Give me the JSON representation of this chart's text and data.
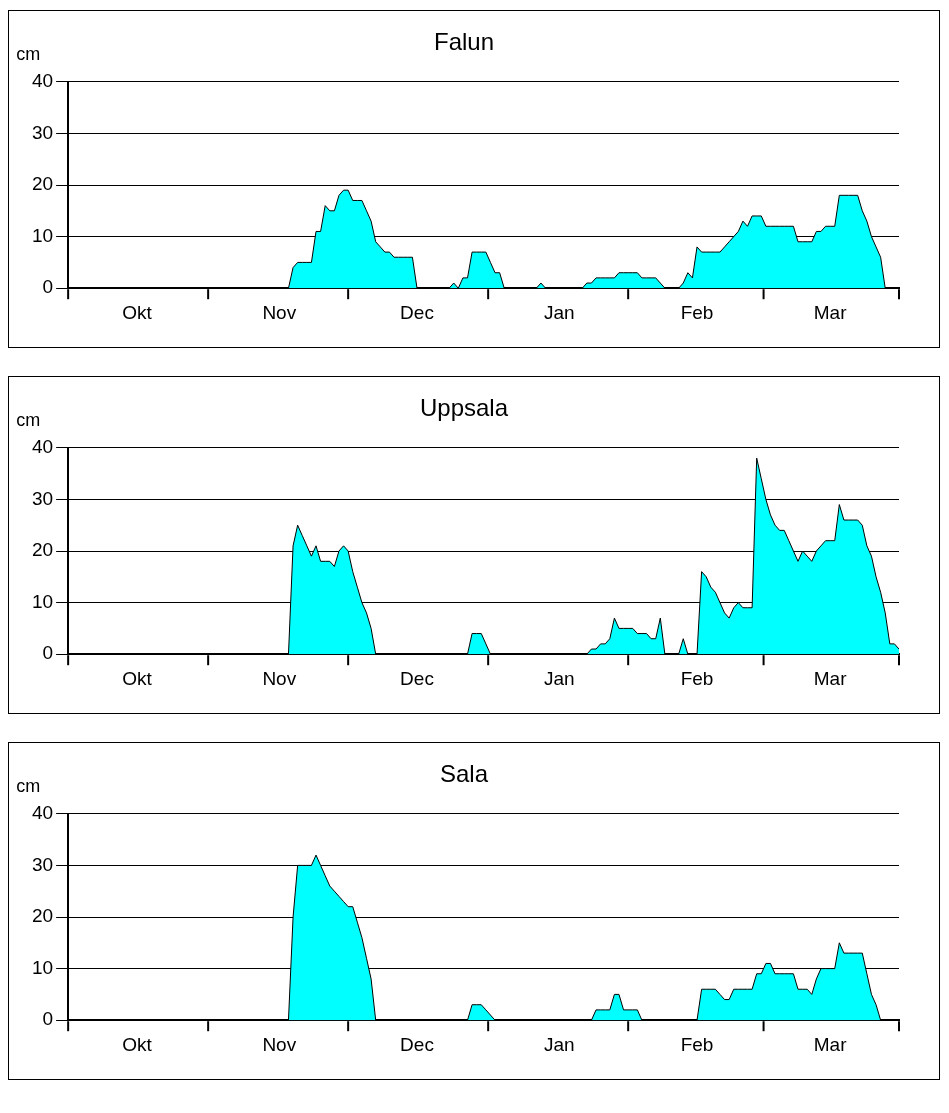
{
  "chart_data": [
    {
      "type": "area",
      "title": "Falun",
      "ylabel": "cm",
      "color": "#00ffff",
      "grid": "y",
      "ylim": [
        0,
        40
      ],
      "yticks": [
        0,
        10,
        20,
        30,
        40
      ],
      "categories": [
        null,
        null,
        null,
        null,
        null,
        null,
        null,
        null,
        null,
        null,
        null,
        null,
        null,
        null,
        null,
        "Okt",
        null,
        null,
        null,
        null,
        null,
        null,
        null,
        null,
        null,
        null,
        null,
        null,
        null,
        null,
        null,
        null,
        null,
        null,
        null,
        null,
        null,
        null,
        null,
        null,
        null,
        null,
        null,
        null,
        null,
        null,
        "Nov",
        null,
        null,
        null,
        null,
        null,
        null,
        null,
        null,
        null,
        null,
        null,
        null,
        null,
        null,
        null,
        null,
        null,
        null,
        null,
        null,
        null,
        null,
        null,
        null,
        null,
        null,
        null,
        null,
        null,
        "Dec",
        null,
        null,
        null,
        null,
        null,
        null,
        null,
        null,
        null,
        null,
        null,
        null,
        null,
        null,
        null,
        null,
        null,
        null,
        null,
        null,
        null,
        null,
        null,
        null,
        null,
        null,
        null,
        null,
        null,
        null,
        "Jan",
        null,
        null,
        null,
        null,
        null,
        null,
        null,
        null,
        null,
        null,
        null,
        null,
        null,
        null,
        null,
        null,
        null,
        null,
        null,
        null,
        null,
        null,
        null,
        null,
        null,
        null,
        null,
        null,
        null,
        "Feb",
        null,
        null,
        null,
        null,
        null,
        null,
        null,
        null,
        null,
        null,
        null,
        null,
        null,
        null,
        null,
        null,
        null,
        null,
        null,
        null,
        null,
        null,
        null,
        null,
        null,
        null,
        null,
        null,
        "Mar",
        null,
        null,
        null,
        null,
        null,
        null,
        null,
        null,
        null,
        null,
        null,
        null,
        null,
        null,
        null
      ],
      "values": [
        0,
        0,
        0,
        0,
        0,
        0,
        0,
        0,
        0,
        0,
        0,
        0,
        0,
        0,
        0,
        0,
        0,
        0,
        0,
        0,
        0,
        0,
        0,
        0,
        0,
        0,
        0,
        0,
        0,
        0,
        0,
        0,
        0,
        0,
        0,
        0,
        0,
        0,
        0,
        0,
        0,
        0,
        0,
        0,
        0,
        0,
        0,
        0,
        0,
        4,
        5,
        5,
        5,
        5,
        11,
        11,
        16,
        15,
        15,
        18,
        19,
        19,
        17,
        17,
        17,
        15,
        13,
        9,
        8,
        7,
        7,
        6,
        6,
        6,
        6,
        6,
        0,
        0,
        0,
        0,
        0,
        0,
        0,
        0,
        1,
        0,
        2,
        2,
        7,
        7,
        7,
        7,
        5,
        3,
        3,
        0,
        0,
        0,
        0,
        0,
        0,
        0,
        0,
        1,
        0,
        0,
        0,
        0,
        0,
        0,
        0,
        0,
        0,
        1,
        1,
        2,
        2,
        2,
        2,
        2,
        3,
        3,
        3,
        3,
        3,
        2,
        2,
        2,
        2,
        1,
        0,
        0,
        0,
        0,
        1,
        3,
        2,
        8,
        7,
        7,
        7,
        7,
        7,
        8,
        9,
        10,
        11,
        13,
        12,
        14,
        14,
        14,
        12,
        12,
        12,
        12,
        12,
        12,
        12,
        9,
        9,
        9,
        9,
        11,
        11,
        12,
        12,
        12,
        18,
        18,
        18,
        18,
        18,
        15,
        13,
        10,
        8,
        6,
        0,
        0,
        0,
        0
      ]
    },
    {
      "type": "area",
      "title": "Uppsala",
      "ylabel": "cm",
      "color": "#00ffff",
      "grid": "y",
      "ylim": [
        0,
        40
      ],
      "yticks": [
        0,
        10,
        20,
        30,
        40
      ],
      "categories": [
        null,
        null,
        null,
        null,
        null,
        null,
        null,
        null,
        null,
        null,
        null,
        null,
        null,
        null,
        null,
        "Okt",
        null,
        null,
        null,
        null,
        null,
        null,
        null,
        null,
        null,
        null,
        null,
        null,
        null,
        null,
        null,
        null,
        null,
        null,
        null,
        null,
        null,
        null,
        null,
        null,
        null,
        null,
        null,
        null,
        null,
        null,
        "Nov",
        null,
        null,
        null,
        null,
        null,
        null,
        null,
        null,
        null,
        null,
        null,
        null,
        null,
        null,
        null,
        null,
        null,
        null,
        null,
        null,
        null,
        null,
        null,
        null,
        null,
        null,
        null,
        null,
        null,
        "Dec",
        null,
        null,
        null,
        null,
        null,
        null,
        null,
        null,
        null,
        null,
        null,
        null,
        null,
        null,
        null,
        null,
        null,
        null,
        null,
        null,
        null,
        null,
        null,
        null,
        null,
        null,
        null,
        null,
        null,
        null,
        "Jan",
        null,
        null,
        null,
        null,
        null,
        null,
        null,
        null,
        null,
        null,
        null,
        null,
        null,
        null,
        null,
        null,
        null,
        null,
        null,
        null,
        null,
        null,
        null,
        null,
        null,
        null,
        null,
        null,
        null,
        "Feb",
        null,
        null,
        null,
        null,
        null,
        null,
        null,
        null,
        null,
        null,
        null,
        null,
        null,
        null,
        null,
        null,
        null,
        null,
        null,
        null,
        null,
        null,
        null,
        null,
        null,
        null,
        null,
        null,
        "Mar",
        null,
        null,
        null,
        null,
        null,
        null,
        null,
        null,
        null,
        null,
        null,
        null,
        null,
        null,
        null
      ],
      "values": [
        0,
        0,
        0,
        0,
        0,
        0,
        0,
        0,
        0,
        0,
        0,
        0,
        0,
        0,
        0,
        0,
        0,
        0,
        0,
        0,
        0,
        0,
        0,
        0,
        0,
        0,
        0,
        0,
        0,
        0,
        0,
        0,
        0,
        0,
        0,
        0,
        0,
        0,
        0,
        0,
        0,
        0,
        0,
        0,
        0,
        0,
        0,
        0,
        0,
        21,
        25,
        23,
        21,
        19,
        21,
        18,
        18,
        18,
        17,
        20,
        21,
        20,
        16,
        13,
        10,
        8,
        5,
        0,
        0,
        0,
        0,
        0,
        0,
        0,
        0,
        0,
        0,
        0,
        0,
        0,
        0,
        0,
        0,
        0,
        0,
        0,
        0,
        0,
        4,
        4,
        4,
        2,
        0,
        0,
        0,
        0,
        0,
        0,
        0,
        0,
        0,
        0,
        0,
        0,
        0,
        0,
        0,
        0,
        0,
        0,
        0,
        0,
        0,
        0,
        1,
        1,
        2,
        2,
        3,
        7,
        5,
        5,
        5,
        5,
        4,
        4,
        4,
        3,
        3,
        7,
        0,
        0,
        0,
        0,
        3,
        0,
        0,
        0,
        16,
        15,
        13,
        12,
        10,
        8,
        7,
        9,
        10,
        9,
        9,
        9,
        38,
        34,
        30,
        27,
        25,
        24,
        24,
        22,
        20,
        18,
        20,
        19,
        18,
        20,
        21,
        22,
        22,
        22,
        29,
        26,
        26,
        26,
        26,
        25,
        21,
        19,
        15,
        12,
        8,
        2,
        2,
        1
      ]
    },
    {
      "type": "area",
      "title": "Sala",
      "ylabel": "cm",
      "color": "#00ffff",
      "grid": "y",
      "ylim": [
        0,
        40
      ],
      "yticks": [
        0,
        10,
        20,
        30,
        40
      ],
      "categories": [
        null,
        null,
        null,
        null,
        null,
        null,
        null,
        null,
        null,
        null,
        null,
        null,
        null,
        null,
        null,
        "Okt",
        null,
        null,
        null,
        null,
        null,
        null,
        null,
        null,
        null,
        null,
        null,
        null,
        null,
        null,
        null,
        null,
        null,
        null,
        null,
        null,
        null,
        null,
        null,
        null,
        null,
        null,
        null,
        null,
        null,
        null,
        "Nov",
        null,
        null,
        null,
        null,
        null,
        null,
        null,
        null,
        null,
        null,
        null,
        null,
        null,
        null,
        null,
        null,
        null,
        null,
        null,
        null,
        null,
        null,
        null,
        null,
        null,
        null,
        null,
        null,
        null,
        "Dec",
        null,
        null,
        null,
        null,
        null,
        null,
        null,
        null,
        null,
        null,
        null,
        null,
        null,
        null,
        null,
        null,
        null,
        null,
        null,
        null,
        null,
        null,
        null,
        null,
        null,
        null,
        null,
        null,
        null,
        null,
        "Jan",
        null,
        null,
        null,
        null,
        null,
        null,
        null,
        null,
        null,
        null,
        null,
        null,
        null,
        null,
        null,
        null,
        null,
        null,
        null,
        null,
        null,
        null,
        null,
        null,
        null,
        null,
        null,
        null,
        null,
        "Feb",
        null,
        null,
        null,
        null,
        null,
        null,
        null,
        null,
        null,
        null,
        null,
        null,
        null,
        null,
        null,
        null,
        null,
        null,
        null,
        null,
        null,
        null,
        null,
        null,
        null,
        null,
        null,
        null,
        "Mar",
        null,
        null,
        null,
        null,
        null,
        null,
        null,
        null,
        null,
        null,
        null,
        null,
        null,
        null,
        null
      ],
      "values": [
        0,
        0,
        0,
        0,
        0,
        0,
        0,
        0,
        0,
        0,
        0,
        0,
        0,
        0,
        0,
        0,
        0,
        0,
        0,
        0,
        0,
        0,
        0,
        0,
        0,
        0,
        0,
        0,
        0,
        0,
        0,
        0,
        0,
        0,
        0,
        0,
        0,
        0,
        0,
        0,
        0,
        0,
        0,
        0,
        0,
        0,
        0,
        0,
        0,
        20,
        30,
        30,
        30,
        30,
        32,
        30,
        28,
        26,
        25,
        24,
        23,
        22,
        22,
        19,
        16,
        12,
        8,
        0,
        0,
        0,
        0,
        0,
        0,
        0,
        0,
        0,
        0,
        0,
        0,
        0,
        0,
        0,
        0,
        0,
        0,
        0,
        0,
        0,
        3,
        3,
        3,
        2,
        1,
        0,
        0,
        0,
        0,
        0,
        0,
        0,
        0,
        0,
        0,
        0,
        0,
        0,
        0,
        0,
        0,
        0,
        0,
        0,
        0,
        0,
        0,
        2,
        2,
        2,
        2,
        5,
        5,
        2,
        2,
        2,
        2,
        0,
        0,
        0,
        0,
        0,
        0,
        0,
        0,
        0,
        0,
        0,
        0,
        0,
        6,
        6,
        6,
        6,
        5,
        4,
        4,
        6,
        6,
        6,
        6,
        6,
        9,
        9,
        11,
        11,
        9,
        9,
        9,
        9,
        9,
        6,
        6,
        6,
        5,
        8,
        10,
        10,
        10,
        10,
        15,
        13,
        13,
        13,
        13,
        13,
        9,
        5,
        3,
        0,
        0,
        0,
        0,
        0
      ]
    }
  ]
}
